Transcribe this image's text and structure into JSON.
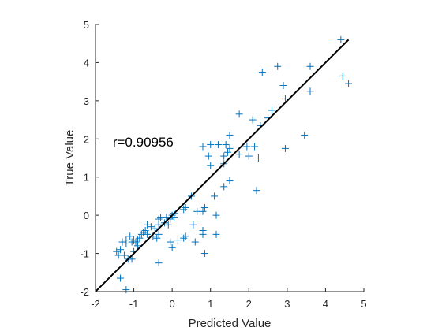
{
  "chart_data": {
    "type": "scatter",
    "xlabel": "Predicted Value",
    "ylabel": "True Value",
    "xlim": [
      -2,
      5
    ],
    "ylim": [
      -2,
      5
    ],
    "xticks": [
      "-2",
      "-1",
      "0",
      "1",
      "2",
      "3",
      "4",
      "5"
    ],
    "yticks": [
      "-2",
      "-1",
      "0",
      "1",
      "2",
      "3",
      "4",
      "5"
    ],
    "annotation": "r=0.90956",
    "grid": false,
    "marker": "+",
    "colors": {
      "points": "#0072BD",
      "fit_line": "#000000",
      "axes": "#262626"
    },
    "fit_line": {
      "x": [
        -2,
        4.6
      ],
      "y": [
        -2,
        4.6
      ]
    },
    "points": [
      [
        4.4,
        4.6
      ],
      [
        4.45,
        3.65
      ],
      [
        4.6,
        3.45
      ],
      [
        3.6,
        3.9
      ],
      [
        3.6,
        3.25
      ],
      [
        3.45,
        2.1
      ],
      [
        2.95,
        1.75
      ],
      [
        2.95,
        3.05
      ],
      [
        2.9,
        3.4
      ],
      [
        2.75,
        3.9
      ],
      [
        2.6,
        2.75
      ],
      [
        2.5,
        2.55
      ],
      [
        2.35,
        3.75
      ],
      [
        2.3,
        2.35
      ],
      [
        2.1,
        2.5
      ],
      [
        2.15,
        1.8
      ],
      [
        2.0,
        1.55
      ],
      [
        1.95,
        1.8
      ],
      [
        2.25,
        1.5
      ],
      [
        2.2,
        0.65
      ],
      [
        1.75,
        2.65
      ],
      [
        1.75,
        1.6
      ],
      [
        1.5,
        2.1
      ],
      [
        1.5,
        1.75
      ],
      [
        1.4,
        1.85
      ],
      [
        1.45,
        1.65
      ],
      [
        1.35,
        1.55
      ],
      [
        1.35,
        1.35
      ],
      [
        1.2,
        1.85
      ],
      [
        1.0,
        1.85
      ],
      [
        0.95,
        1.55
      ],
      [
        1.0,
        1.3
      ],
      [
        0.8,
        1.8
      ],
      [
        1.5,
        0.9
      ],
      [
        1.35,
        0.75
      ],
      [
        1.1,
        0.5
      ],
      [
        1.15,
        -0.0
      ],
      [
        1.15,
        -0.5
      ],
      [
        0.85,
        0.2
      ],
      [
        0.8,
        0.1
      ],
      [
        0.65,
        0.1
      ],
      [
        0.5,
        0.5
      ],
      [
        0.55,
        -0.25
      ],
      [
        0.8,
        -0.4
      ],
      [
        0.8,
        -0.5
      ],
      [
        0.85,
        -1.0
      ],
      [
        0.6,
        -0.7
      ],
      [
        0.35,
        0.2
      ],
      [
        0.3,
        0.15
      ],
      [
        0.35,
        -0.55
      ],
      [
        0.3,
        -0.6
      ],
      [
        0.15,
        -0.65
      ],
      [
        0.0,
        0.0
      ],
      [
        0.05,
        -0.05
      ],
      [
        -0.05,
        -0.1
      ],
      [
        0.0,
        -0.85
      ],
      [
        -0.05,
        -0.7
      ],
      [
        -0.3,
        -0.05
      ],
      [
        -0.35,
        -0.1
      ],
      [
        -0.2,
        -0.2
      ],
      [
        -0.35,
        -0.25
      ],
      [
        -0.35,
        -0.5
      ],
      [
        -0.4,
        -0.6
      ],
      [
        -0.35,
        -1.25
      ],
      [
        -0.45,
        -0.35
      ],
      [
        -0.55,
        -0.3
      ],
      [
        -0.5,
        -0.55
      ],
      [
        -0.65,
        -0.25
      ],
      [
        -0.65,
        -0.5
      ],
      [
        -0.7,
        -0.4
      ],
      [
        -0.75,
        -0.45
      ],
      [
        -0.8,
        -0.5
      ],
      [
        -0.85,
        -0.6
      ],
      [
        -0.9,
        -0.65
      ],
      [
        -0.95,
        -0.7
      ],
      [
        -1.05,
        -0.7
      ],
      [
        -1.0,
        -0.95
      ],
      [
        -1.0,
        -0.65
      ],
      [
        -1.1,
        -0.55
      ],
      [
        -1.2,
        -0.65
      ],
      [
        -1.15,
        -1.15
      ],
      [
        -1.2,
        -0.75
      ],
      [
        -1.3,
        -0.7
      ],
      [
        -1.35,
        -0.9
      ],
      [
        -1.4,
        -1.05
      ],
      [
        -1.45,
        -0.95
      ],
      [
        -1.25,
        -1.05
      ],
      [
        -1.35,
        -1.65
      ],
      [
        -1.2,
        -1.95
      ],
      [
        -1.05,
        -1.15
      ],
      [
        -0.9,
        -0.8
      ],
      [
        -0.1,
        -0.25
      ],
      [
        -0.15,
        -0.05
      ],
      [
        0.05,
        0.05
      ]
    ]
  }
}
